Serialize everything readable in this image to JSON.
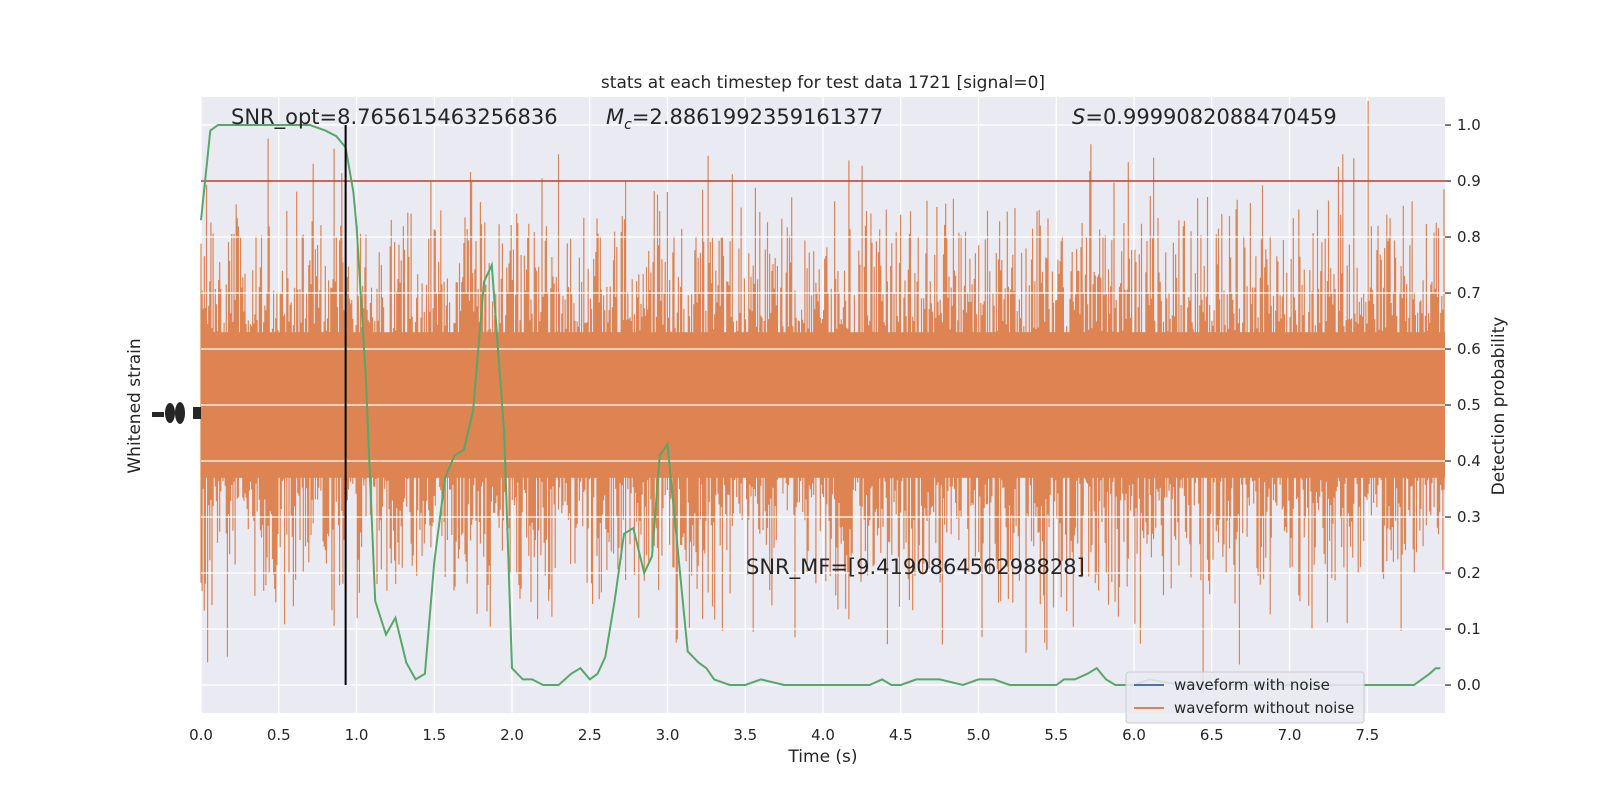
{
  "chart_data": {
    "type": "line",
    "title": "stats at each timestep for test data 1721 [signal=0]",
    "xlabel": "Time (s)",
    "ylabel_left": "Whitened strain",
    "ylabel_right": "Detection probability",
    "xlim": [
      0,
      8
    ],
    "ylim_right": [
      -0.05,
      1.05
    ],
    "x_ticks": [
      "0.0",
      "0.5",
      "1.0",
      "1.5",
      "2.0",
      "2.5",
      "3.0",
      "3.5",
      "4.0",
      "4.5",
      "5.0",
      "5.5",
      "6.0",
      "6.5",
      "7.0",
      "7.5"
    ],
    "y_ticks_right": [
      "0.0",
      "0.1",
      "0.2",
      "0.3",
      "0.4",
      "0.5",
      "0.6",
      "0.7",
      "0.8",
      "0.9",
      "1.0"
    ],
    "grid": true,
    "annotations": {
      "snr_opt": "SNR_opt=8.765615463256836",
      "mc_symbol": "M",
      "mc_sub": "c",
      "mc_value": "=2.8861992359161377",
      "s_symbol": "S",
      "s_value": "=0.9999082088470459",
      "snr_mf": "SNR_MF=[9.419086456298828]"
    },
    "threshold": {
      "y": 0.9,
      "color": "#c0392b"
    },
    "marker_line": {
      "x": 0.93,
      "color": "#000000"
    },
    "series": [
      {
        "name": "waveform with noise",
        "color": "#4c72b0",
        "kind": "strain"
      },
      {
        "name": "waveform without noise",
        "color": "#dd8452",
        "kind": "strain"
      },
      {
        "color": "#55a868",
        "kind": "probability",
        "x": [
          0.0,
          0.06,
          0.11,
          0.2,
          0.3,
          0.5,
          0.7,
          0.8,
          0.87,
          0.93,
          0.98,
          1.0,
          1.06,
          1.12,
          1.19,
          1.25,
          1.32,
          1.38,
          1.44,
          1.5,
          1.57,
          1.63,
          1.69,
          1.75,
          1.82,
          1.87,
          1.95,
          2.0,
          2.07,
          2.13,
          2.2,
          2.3,
          2.38,
          2.44,
          2.5,
          2.55,
          2.6,
          2.66,
          2.72,
          2.78,
          2.85,
          2.9,
          2.95,
          3.0,
          3.07,
          3.13,
          3.2,
          3.25,
          3.3,
          3.4,
          3.5,
          3.6,
          3.75,
          3.9,
          4.0,
          4.2,
          4.3,
          4.38,
          4.44,
          4.5,
          4.6,
          4.75,
          4.9,
          5.0,
          5.1,
          5.2,
          5.4,
          5.5,
          5.55,
          5.62,
          5.7,
          5.76,
          5.82,
          5.88,
          6.0,
          6.1,
          6.3,
          6.5,
          6.7,
          6.9,
          7.1,
          7.3,
          7.5,
          7.7,
          7.8,
          7.85,
          7.9,
          7.94,
          7.97
        ],
        "values": [
          0.83,
          0.99,
          1.0,
          1.0,
          1.0,
          1.0,
          1.0,
          0.99,
          0.98,
          0.96,
          0.88,
          0.82,
          0.55,
          0.15,
          0.09,
          0.12,
          0.04,
          0.01,
          0.02,
          0.22,
          0.37,
          0.41,
          0.42,
          0.49,
          0.72,
          0.75,
          0.45,
          0.03,
          0.01,
          0.01,
          0.0,
          0.0,
          0.02,
          0.03,
          0.01,
          0.02,
          0.05,
          0.15,
          0.27,
          0.28,
          0.2,
          0.23,
          0.41,
          0.43,
          0.23,
          0.06,
          0.04,
          0.03,
          0.01,
          0.0,
          0.0,
          0.01,
          0.0,
          0.0,
          0.0,
          0.0,
          0.0,
          0.01,
          0.0,
          0.0,
          0.01,
          0.01,
          0.0,
          0.01,
          0.01,
          0.0,
          0.0,
          0.0,
          0.01,
          0.01,
          0.02,
          0.03,
          0.01,
          0.0,
          0.0,
          0.01,
          0.0,
          0.0,
          0.0,
          0.0,
          0.0,
          0.0,
          0.0,
          0.0,
          0.0,
          0.01,
          0.02,
          0.03,
          0.03
        ]
      }
    ],
    "legend_position": "lower-right",
    "colors": {
      "plot_background": "#eaeaf2",
      "grid": "#ffffff",
      "strain_fill": "#dd8452"
    }
  }
}
